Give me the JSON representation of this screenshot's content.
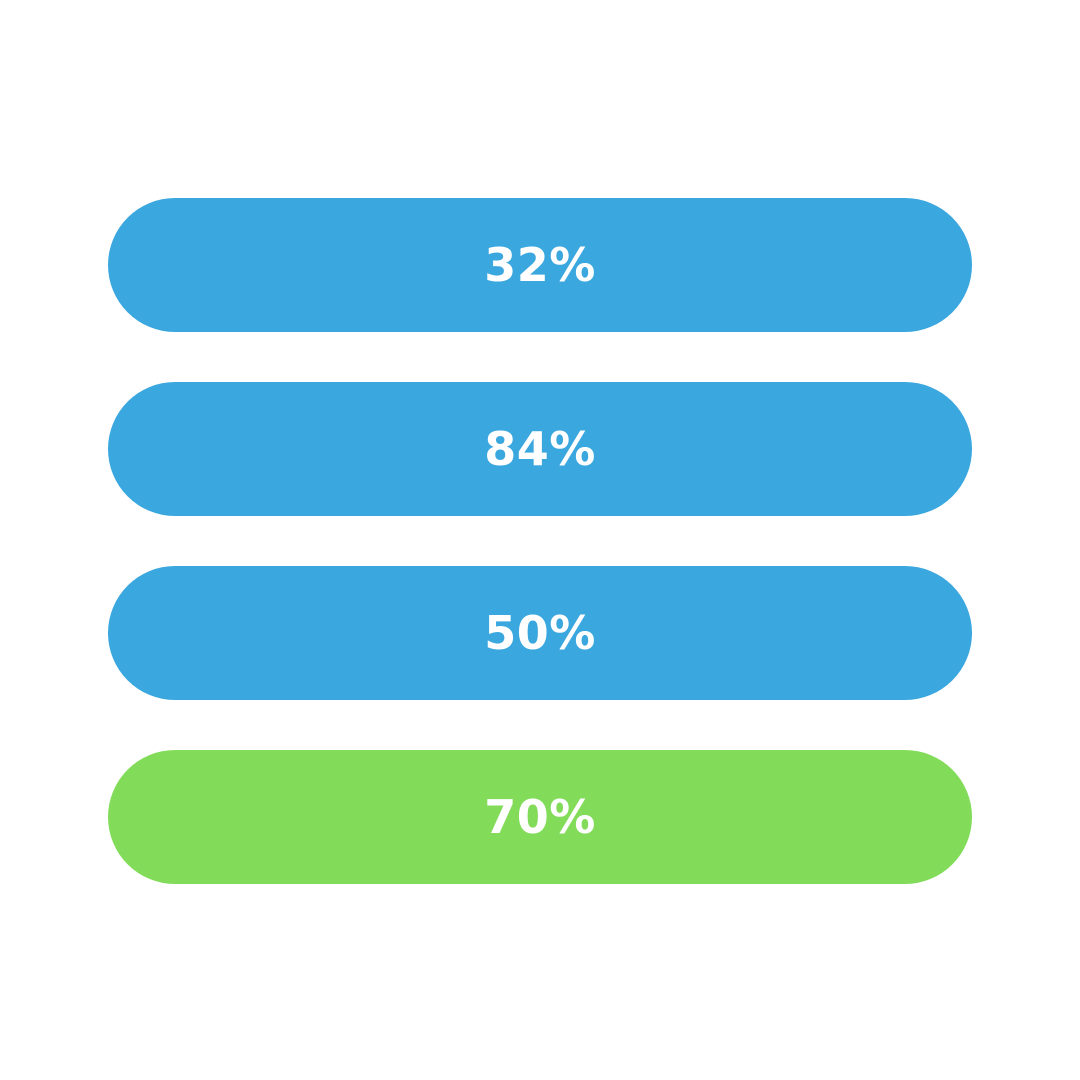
{
  "options": [
    {
      "label": "32%",
      "color": "#3aa7df"
    },
    {
      "label": "84%",
      "color": "#3aa7df"
    },
    {
      "label": "50%",
      "color": "#3aa7df"
    },
    {
      "label": "70%",
      "color": "#82dc5a"
    }
  ]
}
